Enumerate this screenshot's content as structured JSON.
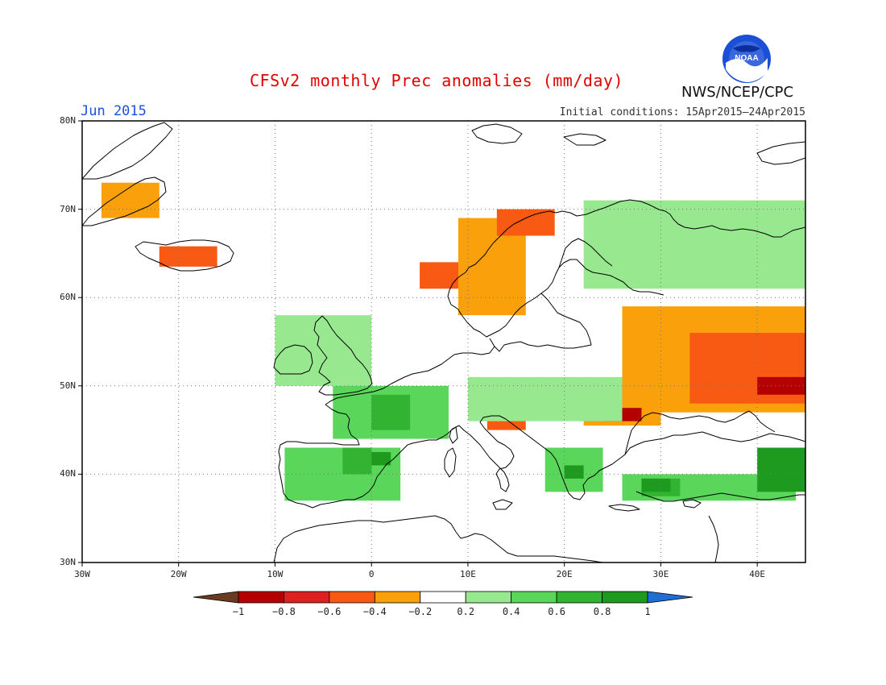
{
  "title": "CFSv2 monthly Prec anomalies (mm/day)",
  "month_label": "Jun 2015",
  "initial_conditions": "Initial conditions: 15Apr2015–24Apr2015",
  "agency": "NWS/NCEP/CPC",
  "logo": {
    "icon": "noaa-logo",
    "text": "NOAA"
  },
  "map": {
    "lon_range": [
      -30,
      45
    ],
    "lat_range": [
      30,
      80
    ],
    "lat_ticks": [
      "30N",
      "40N",
      "50N",
      "60N",
      "70N",
      "80N"
    ],
    "lon_ticks": [
      "30W",
      "20W",
      "10W",
      "0",
      "10E",
      "20E",
      "30E",
      "40E"
    ],
    "gridlines": "dotted"
  },
  "legend": {
    "labels": [
      "-1",
      "-0.8",
      "-0.6",
      "-0.4",
      "-0.2",
      "0.2",
      "0.4",
      "0.6",
      "0.8",
      "1"
    ],
    "colors": [
      "#6b3a21",
      "#b40000",
      "#dd2020",
      "#f85a14",
      "#f9a00a",
      "#ffffff",
      "#98e890",
      "#5ad65a",
      "#32b432",
      "#1e9a1e",
      "#1e6ed6"
    ]
  },
  "colors": {
    "title": "#e00000",
    "month": "#1e50e0",
    "gridline": "#777777",
    "coastline": "#000000"
  },
  "anomaly_regions": [
    {
      "class": "-0.6..-0.4",
      "lon": [
        -22,
        -16
      ],
      "lat": [
        63.5,
        65.8
      ]
    },
    {
      "class": "-0.4..-0.2",
      "lon": [
        -28,
        -22
      ],
      "lat": [
        69,
        73
      ]
    },
    {
      "class": "-0.6..-0.4",
      "lon": [
        5,
        11
      ],
      "lat": [
        61,
        64
      ]
    },
    {
      "class": "-0.4..-0.2",
      "lon": [
        9,
        16
      ],
      "lat": [
        58,
        69
      ]
    },
    {
      "class": "-0.6..-0.4",
      "lon": [
        13,
        19
      ],
      "lat": [
        67,
        70
      ]
    },
    {
      "class": "-0.4..-0.2",
      "lon": [
        26,
        45
      ],
      "lat": [
        47,
        59
      ]
    },
    {
      "class": "-0.6..-0.4",
      "lon": [
        33,
        45
      ],
      "lat": [
        48,
        56
      ]
    },
    {
      "class": "-0.8..-0.6",
      "lon": [
        40,
        45
      ],
      "lat": [
        49,
        51
      ]
    },
    {
      "class": "-0.4..-0.2",
      "lon": [
        22,
        30
      ],
      "lat": [
        45.5,
        49
      ]
    },
    {
      "class": "-0.8..-0.6",
      "lon": [
        24,
        28
      ],
      "lat": [
        46,
        47.5
      ]
    },
    {
      "class": "-0.6..-0.4",
      "lon": [
        12,
        16
      ],
      "lat": [
        45,
        46.8
      ]
    },
    {
      "class": "0.2..0.4",
      "lon": [
        22,
        45
      ],
      "lat": [
        61,
        71
      ]
    },
    {
      "class": "0.2..0.4",
      "lon": [
        -10,
        0
      ],
      "lat": [
        50,
        58
      ]
    },
    {
      "class": "0.4..0.6",
      "lon": [
        -4,
        8
      ],
      "lat": [
        44,
        50
      ]
    },
    {
      "class": "0.6..0.8",
      "lon": [
        0,
        4
      ],
      "lat": [
        45,
        49
      ]
    },
    {
      "class": "0.4..0.6",
      "lon": [
        -9,
        3
      ],
      "lat": [
        37,
        43
      ]
    },
    {
      "class": "0.6..0.8",
      "lon": [
        -3,
        0
      ],
      "lat": [
        40,
        43
      ]
    },
    {
      "class": "0.8..1",
      "lon": [
        0,
        2
      ],
      "lat": [
        41,
        42.5
      ]
    },
    {
      "class": "0.2..0.4",
      "lon": [
        10,
        26
      ],
      "lat": [
        46,
        51
      ]
    },
    {
      "class": "0.4..0.6",
      "lon": [
        18,
        24
      ],
      "lat": [
        38,
        43
      ]
    },
    {
      "class": "0.8..1",
      "lon": [
        20,
        22
      ],
      "lat": [
        39.5,
        41
      ]
    },
    {
      "class": "0.4..0.6",
      "lon": [
        26,
        44
      ],
      "lat": [
        37,
        40
      ]
    },
    {
      "class": "0.6..0.8",
      "lon": [
        28,
        32
      ],
      "lat": [
        37.5,
        39.5
      ]
    },
    {
      "class": "0.8..1",
      "lon": [
        28,
        31
      ],
      "lat": [
        38,
        39.5
      ]
    },
    {
      "class": "0.8..1",
      "lon": [
        40,
        45
      ],
      "lat": [
        38,
        43
      ]
    }
  ]
}
